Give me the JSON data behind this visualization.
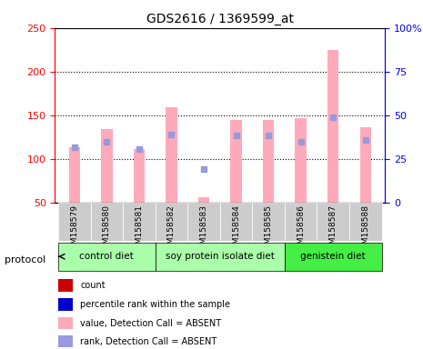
{
  "title": "GDS2616 / 1369599_at",
  "samples": [
    "GSM158579",
    "GSM158580",
    "GSM158581",
    "GSM158582",
    "GSM158583",
    "GSM158584",
    "GSM158585",
    "GSM158586",
    "GSM158587",
    "GSM158588"
  ],
  "pink_bars": [
    113,
    134,
    111,
    159,
    56,
    144,
    145,
    147,
    225,
    136
  ],
  "blue_squares_val": [
    113,
    119,
    111,
    128,
    88,
    127,
    127,
    120,
    148,
    122
  ],
  "blue_squares_show": [
    true,
    true,
    true,
    true,
    true,
    true,
    true,
    true,
    true,
    true
  ],
  "ylim_left": [
    50,
    250
  ],
  "ylim_right": [
    0,
    100
  ],
  "yticks_left": [
    50,
    100,
    150,
    200,
    250
  ],
  "yticks_right": [
    0,
    25,
    50,
    75,
    100
  ],
  "ytick_labels_right": [
    "0",
    "25",
    "50",
    "75",
    "100%"
  ],
  "grid_values": [
    100,
    150,
    200
  ],
  "protocol_groups": [
    {
      "label": "control diet",
      "start": 0,
      "end": 3,
      "color": "#90ee90"
    },
    {
      "label": "soy protein isolate diet",
      "start": 3,
      "end": 7,
      "color": "#90ee90"
    },
    {
      "label": "genistein diet",
      "start": 7,
      "end": 10,
      "color": "#00dd00"
    }
  ],
  "protocol_group_colors": [
    "#b8f0b8",
    "#b8f0b8",
    "#44ee44"
  ],
  "bar_width": 0.4,
  "pink_color": "#ffaabb",
  "blue_sq_color": "#9999dd",
  "bg_plot": "#ffffff",
  "bg_sample": "#cccccc",
  "bg_protocol_light": "#aaffaa",
  "bg_protocol_dark": "#44ee44",
  "legend_items": [
    {
      "color": "#cc0000",
      "label": "count"
    },
    {
      "color": "#0000cc",
      "label": "percentile rank within the sample"
    },
    {
      "color": "#ffaabb",
      "label": "value, Detection Call = ABSENT"
    },
    {
      "color": "#9999dd",
      "label": "rank, Detection Call = ABSENT"
    }
  ]
}
